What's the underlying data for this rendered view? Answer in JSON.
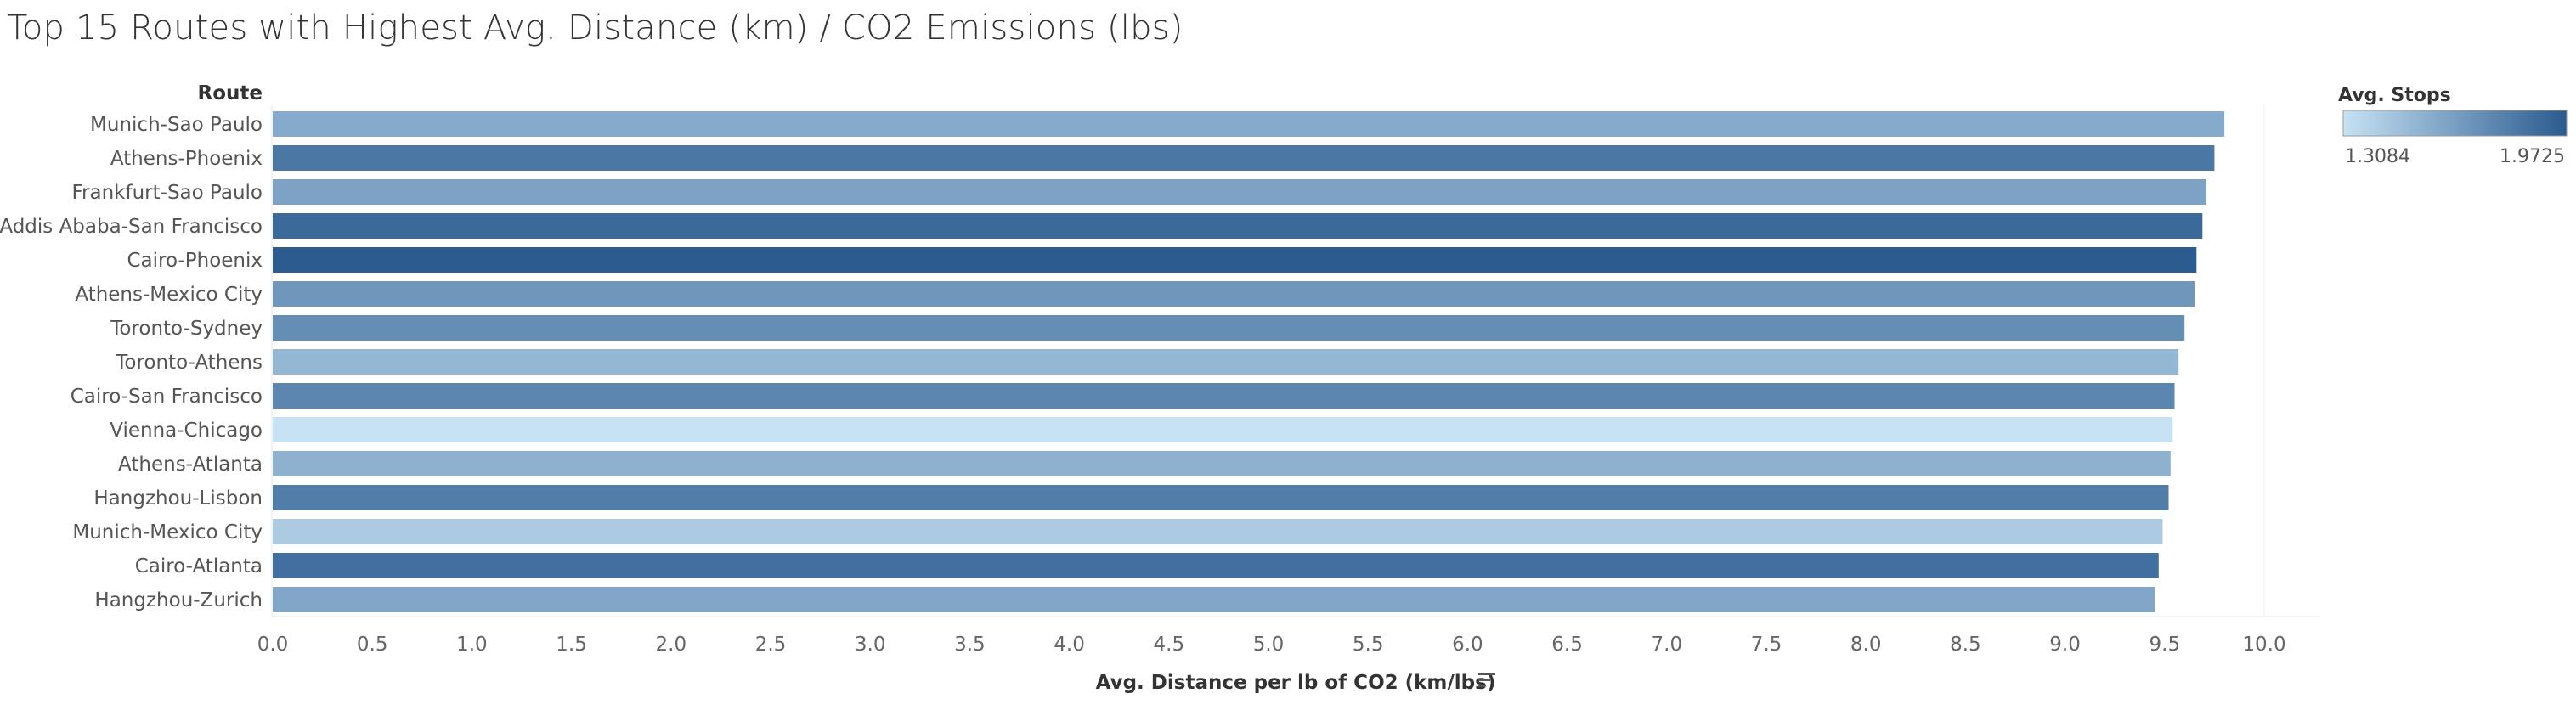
{
  "chart_data": {
    "type": "bar",
    "orientation": "horizontal",
    "title": "Top 15 Routes with Highest Avg. Distance (km) / CO2 Emissions (lbs)",
    "ylabel": "Route",
    "xlabel": "Avg. Distance per lb of CO2 (km/lbs)",
    "xlim": [
      0,
      10.3
    ],
    "x_ticks": [
      "0.0",
      "0.5",
      "1.0",
      "1.5",
      "2.0",
      "2.5",
      "3.0",
      "3.5",
      "4.0",
      "4.5",
      "5.0",
      "5.5",
      "6.0",
      "6.5",
      "7.0",
      "7.5",
      "8.0",
      "8.5",
      "9.0",
      "9.5",
      "10.0"
    ],
    "grid": false,
    "sorted": "descending",
    "categories": [
      "Munich-Sao Paulo",
      "Athens-Phoenix",
      "Frankfurt-Sao Paulo",
      "Addis Ababa-San Francisco",
      "Cairo-Phoenix",
      "Athens-Mexico City",
      "Toronto-Sydney",
      "Toronto-Athens",
      "Cairo-San Francisco",
      "Vienna-Chicago",
      "Athens-Atlanta",
      "Hangzhou-Lisbon",
      "Munich-Mexico City",
      "Cairo-Atlanta",
      "Hangzhou-Zurich"
    ],
    "values": [
      9.8,
      9.75,
      9.71,
      9.69,
      9.66,
      9.65,
      9.6,
      9.57,
      9.55,
      9.54,
      9.53,
      9.52,
      9.49,
      9.47,
      9.45
    ],
    "color_measure": {
      "name": "Avg. Stops",
      "min": 1.3084,
      "max": 1.9725,
      "min_label": "1.3084",
      "max_label": "1.9725",
      "min_color": "#c6e2f4",
      "max_color": "#2a5a8f",
      "values": [
        1.58,
        1.83,
        1.62,
        1.9,
        1.97,
        1.68,
        1.72,
        1.52,
        1.76,
        1.31,
        1.55,
        1.8,
        1.42,
        1.87,
        1.6
      ]
    },
    "legend_placement": "top-right"
  }
}
